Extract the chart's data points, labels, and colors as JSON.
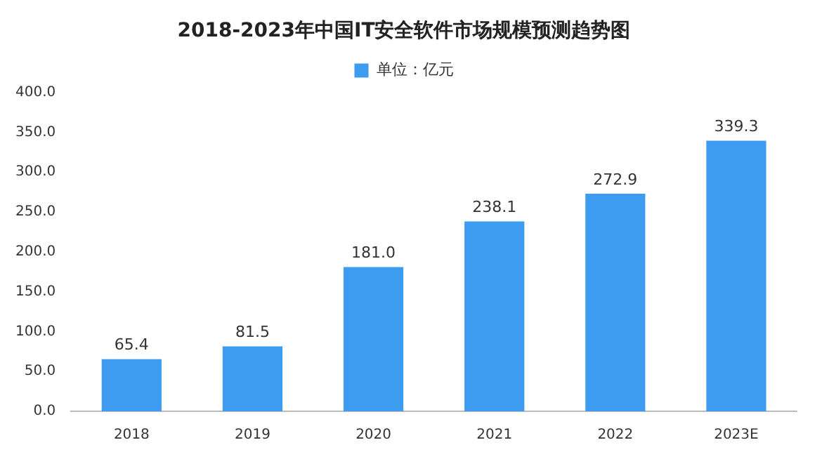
{
  "chart_data": {
    "type": "bar",
    "title": "2018-2023年中国IT安全软件市场规模预测趋势图",
    "categories": [
      "2018",
      "2019",
      "2020",
      "2021",
      "2022",
      "2023E"
    ],
    "series": [
      {
        "name": "单位：亿元",
        "color": "#3d9bf0",
        "values": [
          65.4,
          81.5,
          181.0,
          238.1,
          272.9,
          339.3
        ],
        "value_labels": [
          "65.4",
          "81.5",
          "181.0",
          "238.1",
          "272.9",
          "339.3"
        ]
      }
    ],
    "ylim": [
      0,
      400
    ],
    "yticks": [
      {
        "value": 0,
        "label": "0.0"
      },
      {
        "value": 50,
        "label": "50.0"
      },
      {
        "value": 100,
        "label": "100.0"
      },
      {
        "value": 150,
        "label": "150.0"
      },
      {
        "value": 200,
        "label": "200.0"
      },
      {
        "value": 250,
        "label": "250.0"
      },
      {
        "value": 300,
        "label": "300.0"
      },
      {
        "value": 350,
        "label": "350.0"
      },
      {
        "value": 400,
        "label": "400.0"
      }
    ],
    "grid": false,
    "legend": "top"
  }
}
